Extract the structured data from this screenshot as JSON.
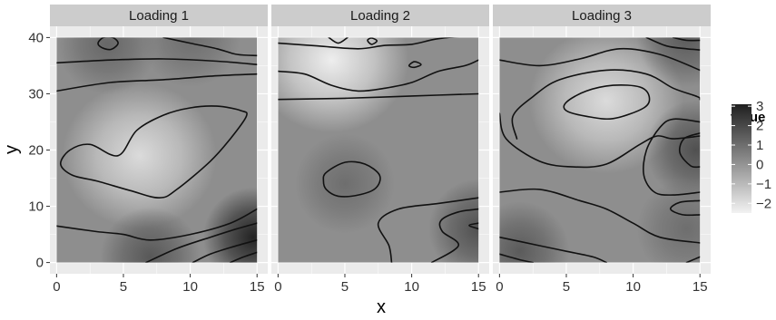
{
  "chart_data": {
    "type": "heatmap",
    "xlabel": "x",
    "ylabel": "y",
    "x_ticks": [
      0,
      5,
      10,
      15
    ],
    "y_ticks": [
      0,
      10,
      20,
      30,
      40
    ],
    "xlim": [
      -0.5,
      15.8
    ],
    "ylim": [
      -2,
      42
    ],
    "data_extent": {
      "x": [
        0,
        15
      ],
      "y": [
        0,
        40
      ]
    },
    "panels": [
      {
        "label": "Loading 1",
        "low_regions": [
          {
            "x": 6.2,
            "y": 19,
            "value": -1.9
          }
        ],
        "high_regions": [
          {
            "x": 14.7,
            "y": 4.5,
            "value": 3.0
          },
          {
            "x": 3.8,
            "y": 38.8,
            "value": 1.2
          },
          {
            "x": 10,
            "y": 40,
            "value": 1.0
          },
          {
            "x": 7,
            "y": 1,
            "value": 1.6
          }
        ],
        "contours": [
          [
            [
              4.6,
              19
            ],
            [
              6,
              23.5
            ],
            [
              8,
              26.2
            ],
            [
              10,
              27.5
            ],
            [
              12,
              27.8
            ],
            [
              13.8,
              27
            ],
            [
              14.2,
              26
            ],
            [
              13,
              22
            ],
            [
              11.5,
              18
            ],
            [
              9,
              13
            ],
            [
              7.7,
              11.5
            ],
            [
              5.5,
              12.8
            ],
            [
              3,
              14.5
            ],
            [
              1.2,
              15.5
            ],
            [
              0.3,
              17.5
            ],
            [
              1,
              20
            ],
            [
              2.5,
              21
            ]
          ],
          [
            [
              0,
              30.5
            ],
            [
              4,
              32
            ],
            [
              8,
              32.5
            ],
            [
              12,
              33.2
            ],
            [
              15,
              33.5
            ]
          ],
          [
            [
              0,
              35.5
            ],
            [
              4,
              36
            ],
            [
              8,
              36.2
            ],
            [
              12,
              35.8
            ],
            [
              15,
              35.2
            ]
          ],
          [
            [
              3.1,
              39
            ],
            [
              3.5,
              40
            ],
            [
              4.2,
              40
            ],
            [
              4.6,
              39
            ],
            [
              4.1,
              37.9
            ],
            [
              3.4,
              38.2
            ]
          ],
          [
            [
              8,
              40
            ],
            [
              10,
              39
            ],
            [
              12,
              38
            ],
            [
              13.5,
              37
            ],
            [
              15,
              36.8
            ]
          ],
          [
            [
              0,
              6.5
            ],
            [
              3,
              5.5
            ],
            [
              5,
              5
            ],
            [
              7,
              4
            ],
            [
              10,
              5
            ],
            [
              13,
              7
            ],
            [
              15,
              9.5
            ]
          ],
          [
            [
              6.7,
              0
            ],
            [
              9,
              2.5
            ],
            [
              11.5,
              4.5
            ],
            [
              13.5,
              6
            ],
            [
              15,
              7
            ]
          ],
          [
            [
              10.2,
              0
            ],
            [
              11.5,
              1.5
            ],
            [
              13.2,
              2.8
            ],
            [
              15,
              4
            ]
          ],
          [
            [
              13,
              0
            ],
            [
              14,
              1
            ],
            [
              15,
              1.8
            ]
          ]
        ]
      },
      {
        "label": "Loading 2",
        "low_regions": [
          {
            "x": 4,
            "y": 36,
            "value": -2.4
          }
        ],
        "high_regions": [
          {
            "x": 5,
            "y": 14,
            "value": 1.0
          },
          {
            "x": 15,
            "y": 6,
            "value": 1.8
          }
        ],
        "contours": [
          [
            [
              0,
              34
            ],
            [
              2,
              33.5
            ],
            [
              4,
              31.5
            ],
            [
              6,
              30.5
            ],
            [
              8,
              31
            ],
            [
              10,
              32
            ],
            [
              12,
              34
            ],
            [
              14,
              35
            ],
            [
              15,
              36
            ]
          ],
          [
            [
              0,
              29
            ],
            [
              5,
              29.2
            ],
            [
              10,
              29.6
            ],
            [
              15,
              30
            ]
          ],
          [
            [
              0,
              39
            ],
            [
              3,
              38.5
            ],
            [
              6,
              38
            ],
            [
              8,
              38.6
            ],
            [
              10,
              38.8
            ],
            [
              12,
              39.8
            ],
            [
              15,
              40.5
            ]
          ],
          [
            [
              3.8,
              40
            ],
            [
              4.5,
              39
            ],
            [
              5.2,
              40
            ]
          ],
          [
            [
              6.7,
              39.5
            ],
            [
              7,
              38.8
            ],
            [
              7.4,
              39.4
            ],
            [
              7,
              39.9
            ]
          ],
          [
            [
              9.8,
              35
            ],
            [
              10.2,
              35.7
            ],
            [
              10.7,
              35.2
            ],
            [
              10.2,
              34.7
            ]
          ],
          [
            [
              3.6,
              16
            ],
            [
              5,
              17.8
            ],
            [
              6.5,
              17.5
            ],
            [
              7.6,
              15.5
            ],
            [
              7.3,
              13.2
            ],
            [
              6,
              12
            ],
            [
              4.5,
              11.8
            ],
            [
              3.6,
              13
            ],
            [
              3.4,
              14.5
            ]
          ],
          [
            [
              15,
              11.5
            ],
            [
              12,
              10.5
            ],
            [
              9,
              9.5
            ],
            [
              7.5,
              7
            ],
            [
              8.3,
              3
            ],
            [
              8.5,
              0
            ]
          ],
          [
            [
              11.5,
              0
            ],
            [
              13.5,
              3
            ],
            [
              12.3,
              5.5
            ],
            [
              12.2,
              7.5
            ],
            [
              13.5,
              9
            ],
            [
              15,
              9.5
            ]
          ],
          [
            [
              15,
              7
            ],
            [
              14.3,
              6.6
            ],
            [
              15,
              6
            ]
          ]
        ]
      },
      {
        "label": "Loading 3",
        "low_regions": [
          {
            "x": 8,
            "y": 28.7,
            "value": -1.9
          }
        ],
        "high_regions": [
          {
            "x": 14.7,
            "y": 20,
            "value": 1.8
          },
          {
            "x": 14,
            "y": 40,
            "value": 1.5
          },
          {
            "x": 1.5,
            "y": 2,
            "value": 1.5
          },
          {
            "x": 14,
            "y": 6,
            "value": 1.0
          }
        ],
        "contours": [
          [
            [
              5,
              28.5
            ],
            [
              6.5,
              30.5
            ],
            [
              8.5,
              31.5
            ],
            [
              10.5,
              31.2
            ],
            [
              11.2,
              29.5
            ],
            [
              10.8,
              27.5
            ],
            [
              8.5,
              25.6
            ],
            [
              6.5,
              26
            ],
            [
              5,
              27
            ]
          ],
          [
            [
              1.3,
              22
            ],
            [
              1,
              26
            ],
            [
              2.5,
              29.5
            ],
            [
              4.5,
              32.5
            ],
            [
              8,
              34.2
            ],
            [
              11,
              33.5
            ],
            [
              13,
              31
            ],
            [
              14.8,
              29.5
            ],
            [
              15,
              29
            ]
          ],
          [
            [
              0,
              36
            ],
            [
              3,
              35
            ],
            [
              6,
              36.2
            ],
            [
              9,
              38
            ],
            [
              12,
              37
            ],
            [
              15,
              34.2
            ]
          ],
          [
            [
              11,
              40
            ],
            [
              12.5,
              38.5
            ],
            [
              14,
              38
            ],
            [
              15,
              37.8
            ]
          ],
          [
            [
              13,
              40
            ],
            [
              14,
              39.5
            ],
            [
              15,
              39.5
            ]
          ],
          [
            [
              0,
              26.5
            ],
            [
              0.5,
              22
            ],
            [
              3,
              18
            ],
            [
              5.5,
              17
            ],
            [
              8,
              17.5
            ],
            [
              10.5,
              21
            ],
            [
              11.8,
              22.5
            ],
            [
              13,
              22
            ],
            [
              15,
              22.5
            ]
          ],
          [
            [
              15,
              25
            ],
            [
              13,
              25.5
            ],
            [
              12,
              24
            ],
            [
              11,
              20
            ],
            [
              10.8,
              15.5
            ],
            [
              11.6,
              12.5
            ],
            [
              13,
              12
            ],
            [
              15,
              12.5
            ]
          ],
          [
            [
              15,
              23
            ],
            [
              13.8,
              22
            ],
            [
              13.5,
              19.5
            ],
            [
              14.3,
              17.2
            ],
            [
              15,
              17
            ]
          ],
          [
            [
              15,
              11
            ],
            [
              13.5,
              10.7
            ],
            [
              12.8,
              9.5
            ],
            [
              13.7,
              8.5
            ],
            [
              15,
              8.5
            ]
          ],
          [
            [
              0,
              12.5
            ],
            [
              3,
              13
            ],
            [
              6,
              11
            ],
            [
              8,
              9.5
            ],
            [
              10,
              7
            ],
            [
              12,
              4.5
            ],
            [
              15,
              3.5
            ]
          ],
          [
            [
              0,
              4.5
            ],
            [
              3,
              3
            ],
            [
              5,
              2
            ],
            [
              7,
              1
            ],
            [
              8,
              0
            ]
          ],
          [
            [
              0,
              1.5
            ],
            [
              1.5,
              0.5
            ],
            [
              2.5,
              0
            ]
          ],
          [
            [
              15,
              1
            ],
            [
              14,
              0
            ]
          ]
        ]
      }
    ],
    "legend": {
      "title": "value",
      "placement": "right",
      "ticks": [
        3,
        2,
        1,
        0,
        -1,
        -2
      ],
      "tick_labels": [
        "3",
        "2",
        "1",
        "0",
        "−1",
        "−2"
      ],
      "range": [
        -2.5,
        3.1
      ]
    },
    "colors": {
      "panel_background": "#ebebeb",
      "strip_fill": "#cccccc",
      "gridline": "#ffffff",
      "low_color": "#f2f2f2",
      "high_color": "#1f1f1f",
      "contour_color": "#111111"
    }
  }
}
